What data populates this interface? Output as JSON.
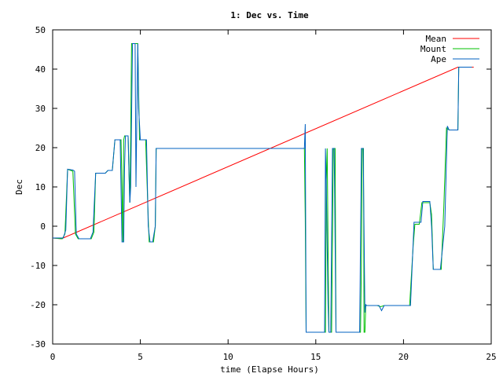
{
  "chart_data": {
    "type": "line",
    "title": "1: Dec vs. Time",
    "xlabel": "time (Elapse Hours)",
    "ylabel": "Dec",
    "xlim": [
      0,
      25
    ],
    "ylim": [
      -30,
      50
    ],
    "xticks": [
      "0",
      "5",
      "10",
      "15",
      "20",
      "25"
    ],
    "yticks": [
      "-30",
      "-20",
      "-10",
      "0",
      "10",
      "20",
      "30",
      "40",
      "50"
    ],
    "grid": false,
    "legend_position": "top-right",
    "series": [
      {
        "name": "Mean",
        "color": "#ff0000",
        "points": [
          [
            0,
            -3
          ],
          [
            0.5,
            -3.2
          ],
          [
            23.1,
            40.5
          ],
          [
            24.0,
            40.5
          ]
        ]
      },
      {
        "name": "Mount",
        "color": "#00c000",
        "points": [
          [
            0,
            -3
          ],
          [
            0.55,
            -3.2
          ],
          [
            0.7,
            -2
          ],
          [
            0.85,
            14.5
          ],
          [
            1.15,
            14
          ],
          [
            1.3,
            -2
          ],
          [
            1.45,
            -3.2
          ],
          [
            2.2,
            -3.2
          ],
          [
            2.35,
            -1.5
          ],
          [
            2.45,
            13.5
          ],
          [
            3.0,
            13.5
          ],
          [
            3.15,
            14.2
          ],
          [
            3.4,
            14.2
          ],
          [
            3.55,
            22
          ],
          [
            3.9,
            22
          ],
          [
            3.95,
            10
          ],
          [
            4.0,
            -4
          ],
          [
            4.05,
            22
          ],
          [
            4.1,
            23
          ],
          [
            4.3,
            23
          ],
          [
            4.35,
            13
          ],
          [
            4.4,
            6
          ],
          [
            4.45,
            23
          ],
          [
            4.5,
            46.5
          ],
          [
            4.85,
            46.5
          ],
          [
            4.95,
            22
          ],
          [
            5.3,
            22
          ],
          [
            5.45,
            2
          ],
          [
            5.5,
            -4
          ],
          [
            5.75,
            -4
          ],
          [
            5.85,
            0
          ],
          [
            5.9,
            19.8
          ],
          [
            14.35,
            19.8
          ],
          [
            14.4,
            2
          ],
          [
            14.45,
            -27
          ],
          [
            15.55,
            -27
          ],
          [
            15.6,
            12
          ],
          [
            15.65,
            19.8
          ],
          [
            15.7,
            -5
          ],
          [
            15.75,
            -27
          ],
          [
            15.9,
            -27
          ],
          [
            16.0,
            19.8
          ],
          [
            16.1,
            19.8
          ],
          [
            16.15,
            -27
          ],
          [
            17.55,
            -27
          ],
          [
            17.6,
            -10
          ],
          [
            17.65,
            19.8
          ],
          [
            17.72,
            19.8
          ],
          [
            17.75,
            -27
          ],
          [
            17.8,
            -27
          ],
          [
            17.85,
            -20
          ],
          [
            17.9,
            -20.2
          ],
          [
            18.5,
            -20.2
          ],
          [
            18.7,
            -20.5
          ],
          [
            18.9,
            -20.2
          ],
          [
            20.35,
            -20.2
          ],
          [
            20.55,
            -5
          ],
          [
            20.65,
            0.5
          ],
          [
            20.9,
            0.5
          ],
          [
            21.05,
            6
          ],
          [
            21.5,
            6
          ],
          [
            21.6,
            3
          ],
          [
            21.7,
            -11
          ],
          [
            22.15,
            -11
          ],
          [
            22.3,
            5
          ],
          [
            22.45,
            25
          ],
          [
            22.6,
            24.5
          ],
          [
            23.1,
            24.5
          ],
          [
            23.15,
            40.5
          ],
          [
            23.9,
            40.5
          ]
        ]
      },
      {
        "name": "Ape",
        "color": "#0060c0",
        "points": [
          [
            0,
            -3
          ],
          [
            0.6,
            -3
          ],
          [
            0.75,
            -1
          ],
          [
            0.85,
            14.5
          ],
          [
            1.15,
            14.3
          ],
          [
            1.25,
            14
          ],
          [
            1.35,
            -2
          ],
          [
            1.5,
            -3.2
          ],
          [
            2.15,
            -3.2
          ],
          [
            2.3,
            -1.5
          ],
          [
            2.45,
            13.5
          ],
          [
            3.0,
            13.5
          ],
          [
            3.15,
            14.2
          ],
          [
            3.4,
            14.2
          ],
          [
            3.55,
            22
          ],
          [
            3.85,
            22
          ],
          [
            3.95,
            -4
          ],
          [
            4.05,
            -4
          ],
          [
            4.1,
            15
          ],
          [
            4.15,
            23
          ],
          [
            4.3,
            23
          ],
          [
            4.4,
            6
          ],
          [
            4.45,
            10
          ],
          [
            4.55,
            46.5
          ],
          [
            4.7,
            46.5
          ],
          [
            4.75,
            10
          ],
          [
            4.85,
            46.5
          ],
          [
            4.9,
            30
          ],
          [
            5.0,
            22
          ],
          [
            5.35,
            22
          ],
          [
            5.45,
            0
          ],
          [
            5.55,
            -4
          ],
          [
            5.7,
            -4
          ],
          [
            5.85,
            0
          ],
          [
            5.9,
            19.8
          ],
          [
            14.35,
            19.8
          ],
          [
            14.4,
            26
          ],
          [
            14.45,
            -27
          ],
          [
            15.5,
            -27
          ],
          [
            15.55,
            19.8
          ],
          [
            15.6,
            10
          ],
          [
            15.7,
            -20
          ],
          [
            15.75,
            -27
          ],
          [
            15.85,
            -27
          ],
          [
            15.95,
            19.8
          ],
          [
            16.05,
            19.8
          ],
          [
            16.15,
            -27
          ],
          [
            17.5,
            -27
          ],
          [
            17.6,
            19.8
          ],
          [
            17.7,
            19.8
          ],
          [
            17.8,
            -22
          ],
          [
            17.85,
            -20
          ],
          [
            17.9,
            -20.2
          ],
          [
            18.6,
            -20.2
          ],
          [
            18.75,
            -21.5
          ],
          [
            18.9,
            -20.2
          ],
          [
            20.4,
            -20.2
          ],
          [
            20.6,
            1
          ],
          [
            21.0,
            1
          ],
          [
            21.1,
            6.3
          ],
          [
            21.5,
            6.3
          ],
          [
            21.6,
            0
          ],
          [
            21.7,
            -11
          ],
          [
            22.1,
            -11
          ],
          [
            22.35,
            0
          ],
          [
            22.5,
            25.5
          ],
          [
            22.6,
            24.5
          ],
          [
            23.1,
            24.5
          ],
          [
            23.15,
            40.5
          ],
          [
            23.9,
            40.5
          ]
        ]
      }
    ]
  }
}
